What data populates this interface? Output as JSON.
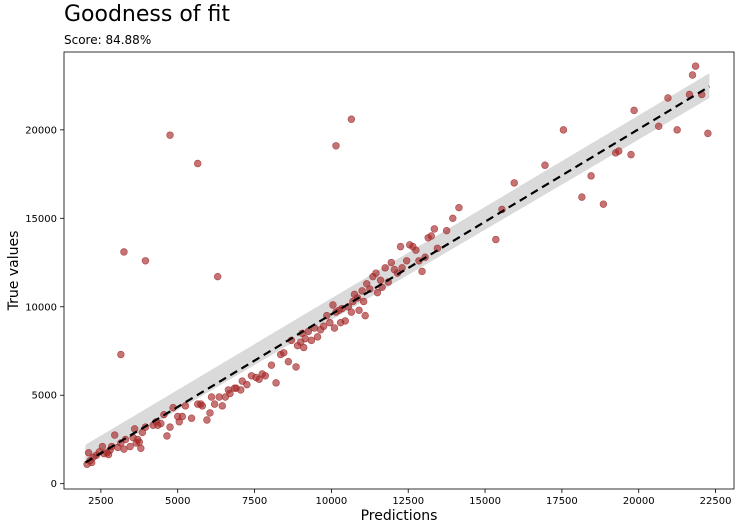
{
  "chart_data": {
    "type": "scatter",
    "title": "Goodness of fit",
    "subtitle": "Score: 84.88%",
    "xlabel": "Predictions",
    "ylabel": "True values",
    "xlim": [
      1300,
      23100
    ],
    "ylim": [
      -300,
      24400
    ],
    "xticks": [
      2500,
      5000,
      7500,
      10000,
      12500,
      15000,
      17500,
      20000,
      22500
    ],
    "xtick_labels": [
      "2500",
      "5000",
      "7500",
      "10000",
      "12500",
      "15000",
      "17500",
      "20000",
      "22500"
    ],
    "yticks": [
      0,
      5000,
      10000,
      15000,
      20000
    ],
    "ytick_labels": [
      "0",
      "5000",
      "10000",
      "15000",
      "20000"
    ],
    "grid": false,
    "colors": {
      "points": "#a52a2a",
      "fit_line": "#000000",
      "confidence_band": "#d3d3d3"
    },
    "fit_line": {
      "x": [
        2000,
        22300
      ],
      "y": [
        1200,
        22450
      ]
    },
    "confidence_band": {
      "x": [
        2000,
        22300
      ],
      "lower": [
        1100,
        21800
      ],
      "upper": [
        2200,
        23200
      ]
    },
    "points": [
      [
        2050,
        1100
      ],
      [
        2100,
        1750
      ],
      [
        2150,
        1300
      ],
      [
        2200,
        1200
      ],
      [
        2250,
        1500
      ],
      [
        2350,
        1600
      ],
      [
        2450,
        1800
      ],
      [
        2550,
        2100
      ],
      [
        2600,
        1700
      ],
      [
        2700,
        1750
      ],
      [
        2750,
        1650
      ],
      [
        2800,
        1900
      ],
      [
        2850,
        2100
      ],
      [
        2950,
        2750
      ],
      [
        3050,
        2050
      ],
      [
        3150,
        2300
      ],
      [
        3250,
        1950
      ],
      [
        3300,
        2500
      ],
      [
        3450,
        2100
      ],
      [
        3550,
        2600
      ],
      [
        3600,
        3100
      ],
      [
        3650,
        2300
      ],
      [
        3700,
        2500
      ],
      [
        3750,
        2350
      ],
      [
        3800,
        2000
      ],
      [
        3850,
        2900
      ],
      [
        3950,
        3200
      ],
      [
        4200,
        3300
      ],
      [
        4300,
        3500
      ],
      [
        4350,
        3300
      ],
      [
        4450,
        3400
      ],
      [
        4550,
        3900
      ],
      [
        4650,
        2700
      ],
      [
        4750,
        3200
      ],
      [
        4850,
        4300
      ],
      [
        5000,
        3800
      ],
      [
        5050,
        3500
      ],
      [
        5150,
        3800
      ],
      [
        5250,
        4400
      ],
      [
        5450,
        3700
      ],
      [
        5650,
        4500
      ],
      [
        5750,
        4500
      ],
      [
        5800,
        4400
      ],
      [
        5950,
        3600
      ],
      [
        6050,
        4000
      ],
      [
        6100,
        4900
      ],
      [
        6200,
        4500
      ],
      [
        6350,
        4900
      ],
      [
        6450,
        4400
      ],
      [
        6550,
        4900
      ],
      [
        6650,
        5300
      ],
      [
        6700,
        5100
      ],
      [
        6850,
        5400
      ],
      [
        6900,
        5400
      ],
      [
        7050,
        5300
      ],
      [
        7100,
        5800
      ],
      [
        7250,
        5600
      ],
      [
        7400,
        6100
      ],
      [
        7550,
        6000
      ],
      [
        7650,
        5900
      ],
      [
        7750,
        6200
      ],
      [
        7850,
        6100
      ],
      [
        8050,
        6700
      ],
      [
        8200,
        5700
      ],
      [
        8350,
        7300
      ],
      [
        8450,
        7400
      ],
      [
        8600,
        6900
      ],
      [
        8700,
        8100
      ],
      [
        8850,
        6600
      ],
      [
        8900,
        7800
      ],
      [
        9000,
        8000
      ],
      [
        9050,
        8500
      ],
      [
        9100,
        7700
      ],
      [
        9150,
        8200
      ],
      [
        9250,
        8600
      ],
      [
        9350,
        8100
      ],
      [
        9450,
        8800
      ],
      [
        9550,
        8300
      ],
      [
        9650,
        8700
      ],
      [
        9750,
        8900
      ],
      [
        9850,
        9500
      ],
      [
        9950,
        9100
      ],
      [
        10050,
        10100
      ],
      [
        10100,
        8800
      ],
      [
        10150,
        9700
      ],
      [
        10250,
        9800
      ],
      [
        10300,
        9100
      ],
      [
        10350,
        9900
      ],
      [
        10450,
        9200
      ],
      [
        10550,
        10000
      ],
      [
        10650,
        9700
      ],
      [
        10700,
        10300
      ],
      [
        10750,
        10700
      ],
      [
        10850,
        10500
      ],
      [
        10900,
        9800
      ],
      [
        11000,
        10900
      ],
      [
        11050,
        10300
      ],
      [
        11100,
        9500
      ],
      [
        11150,
        11300
      ],
      [
        11250,
        11000
      ],
      [
        11350,
        11700
      ],
      [
        11450,
        11900
      ],
      [
        11500,
        10800
      ],
      [
        11600,
        11500
      ],
      [
        11650,
        11100
      ],
      [
        11750,
        12200
      ],
      [
        11850,
        11400
      ],
      [
        11950,
        12500
      ],
      [
        12050,
        12100
      ],
      [
        12150,
        11900
      ],
      [
        12250,
        13400
      ],
      [
        12300,
        12200
      ],
      [
        12450,
        12600
      ],
      [
        12550,
        13500
      ],
      [
        12650,
        13400
      ],
      [
        12750,
        13200
      ],
      [
        12850,
        12600
      ],
      [
        12950,
        12000
      ],
      [
        13050,
        12800
      ],
      [
        13150,
        13900
      ],
      [
        13250,
        14000
      ],
      [
        13350,
        14400
      ],
      [
        13450,
        13300
      ],
      [
        13750,
        14300
      ],
      [
        13950,
        15000
      ],
      [
        14150,
        15600
      ],
      [
        15350,
        13800
      ],
      [
        15550,
        15500
      ],
      [
        15950,
        17000
      ],
      [
        16950,
        18000
      ],
      [
        17550,
        20000
      ],
      [
        18150,
        16200
      ],
      [
        18450,
        17400
      ],
      [
        18850,
        15800
      ],
      [
        19250,
        18700
      ],
      [
        19750,
        18600
      ],
      [
        19850,
        21100
      ],
      [
        20650,
        20200
      ],
      [
        20950,
        21800
      ],
      [
        21250,
        20000
      ],
      [
        21650,
        22000
      ],
      [
        21750,
        23100
      ],
      [
        21850,
        23600
      ],
      [
        22250,
        19800
      ],
      [
        22050,
        22000
      ],
      [
        19350,
        18800
      ],
      [
        3150,
        7300
      ],
      [
        3250,
        13100
      ],
      [
        3950,
        12600
      ],
      [
        4750,
        19700
      ],
      [
        5650,
        18100
      ],
      [
        6300,
        11700
      ],
      [
        10150,
        19100
      ],
      [
        10650,
        20600
      ]
    ]
  }
}
